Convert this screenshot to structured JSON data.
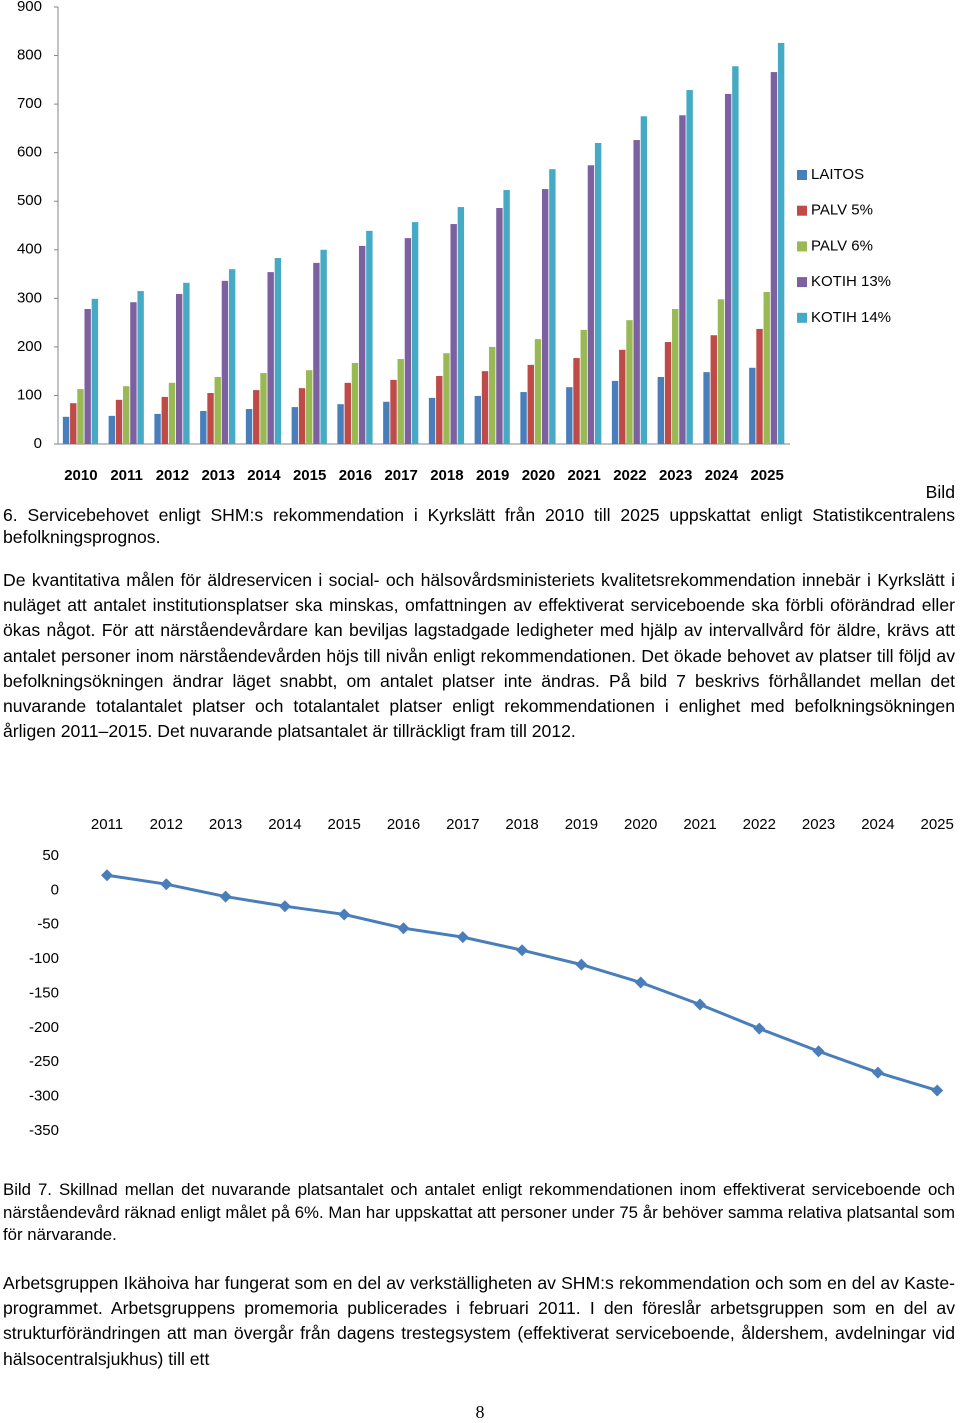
{
  "chart_data": [
    {
      "type": "bar",
      "categories": [
        "2010",
        "2011",
        "2012",
        "2013",
        "2014",
        "2015",
        "2016",
        "2017",
        "2018",
        "2019",
        "2020",
        "2021",
        "2022",
        "2023",
        "2024",
        "2025"
      ],
      "series": [
        {
          "name": "LAITOS",
          "color": "#4a7ebb",
          "values": [
            56,
            58,
            62,
            68,
            72,
            76,
            82,
            87,
            95,
            99,
            107,
            117,
            130,
            138,
            148,
            157
          ]
        },
        {
          "name": "PALV 5%",
          "color": "#be4b48",
          "values": [
            84,
            91,
            97,
            105,
            111,
            115,
            126,
            132,
            140,
            150,
            163,
            177,
            194,
            210,
            224,
            237
          ]
        },
        {
          "name": "PALV 6%",
          "color": "#98b954",
          "values": [
            113,
            119,
            126,
            138,
            146,
            152,
            167,
            175,
            187,
            200,
            216,
            235,
            255,
            278,
            298,
            313
          ]
        },
        {
          "name": "KOTIH 13%",
          "color": "#7d60a0",
          "values": [
            278,
            292,
            309,
            336,
            354,
            373,
            408,
            424,
            453,
            486,
            525,
            574,
            626,
            677,
            721,
            766
          ]
        },
        {
          "name": "KOTIH 14%",
          "color": "#46aac5",
          "values": [
            299,
            315,
            332,
            360,
            383,
            400,
            439,
            457,
            488,
            523,
            566,
            620,
            675,
            729,
            778,
            826
          ]
        }
      ],
      "ylim": [
        0,
        900
      ],
      "yticks": [
        0,
        100,
        200,
        300,
        400,
        500,
        600,
        700,
        800,
        900
      ],
      "legend": "right"
    },
    {
      "type": "line",
      "categories": [
        "2011",
        "2012",
        "2013",
        "2014",
        "2015",
        "2016",
        "2017",
        "2018",
        "2019",
        "2020",
        "2021",
        "2022",
        "2023",
        "2024",
        "2025"
      ],
      "values": [
        22,
        9,
        -9,
        -23,
        -35,
        -55,
        -68,
        -87,
        -108,
        -134,
        -166,
        -201,
        -234,
        -265,
        -291
      ],
      "color": "#4a7ebb",
      "ylim": [
        -350,
        50
      ],
      "yticks": [
        50,
        0,
        -50,
        -100,
        -150,
        -200,
        -250,
        -300,
        -350
      ]
    }
  ],
  "caption_6": {
    "label": "Bild",
    "text": "6. Servicebehovet enligt SHM:s rekommendation i Kyrkslätt från 2010 till 2025 uppskattat enligt Statistikcentralens befolkningsprognos."
  },
  "paragraph_1": "De kvantitativa målen för äldreservicen i social- och hälsovårdsministeriets kvalitetsrekommendation innebär i Kyrkslätt i nuläget att antalet institutionsplatser ska minskas, omfattningen av effektiverat serviceboende ska förbli oförändrad eller ökas något. För att närståendevårdare kan beviljas lagstadgade ledigheter med hjälp av intervallvård för äldre, krävs att antalet personer inom närståendevården höjs till nivån enligt rekommendationen. Det ökade behovet av platser till följd av befolkningsökningen ändrar läget snabbt, om antalet platser inte ändras. På bild 7 beskrivs förhållandet mellan det nuvarande totalantalet platser och totalantalet platser enligt rekommendationen i enlighet med befolkningsökningen årligen 2011–2015. Det nuvarande platsantalet är tillräckligt fram till 2012.",
  "caption_7": "Bild 7. Skillnad mellan det nuvarande platsantalet och antalet enligt rekommendationen inom effektiverat serviceboende och närståendevård räknad enligt målet på 6%. Man har uppskattat att personer under 75 år behöver samma relativa platsantal som för närvarande.",
  "paragraph_2": "Arbetsgruppen Ikähoiva har fungerat som en del av verkställigheten av SHM:s rekommendation och som en del av Kaste-programmet. Arbetsgruppens promemoria publicerades i februari 2011. I den föreslår arbetsgruppen som en del av strukturförändringen att man övergår från dagens trestegsystem (effektiverat serviceboende, åldershem, avdelningar vid hälsocentralsjukhus) till ett",
  "page_number": "8"
}
